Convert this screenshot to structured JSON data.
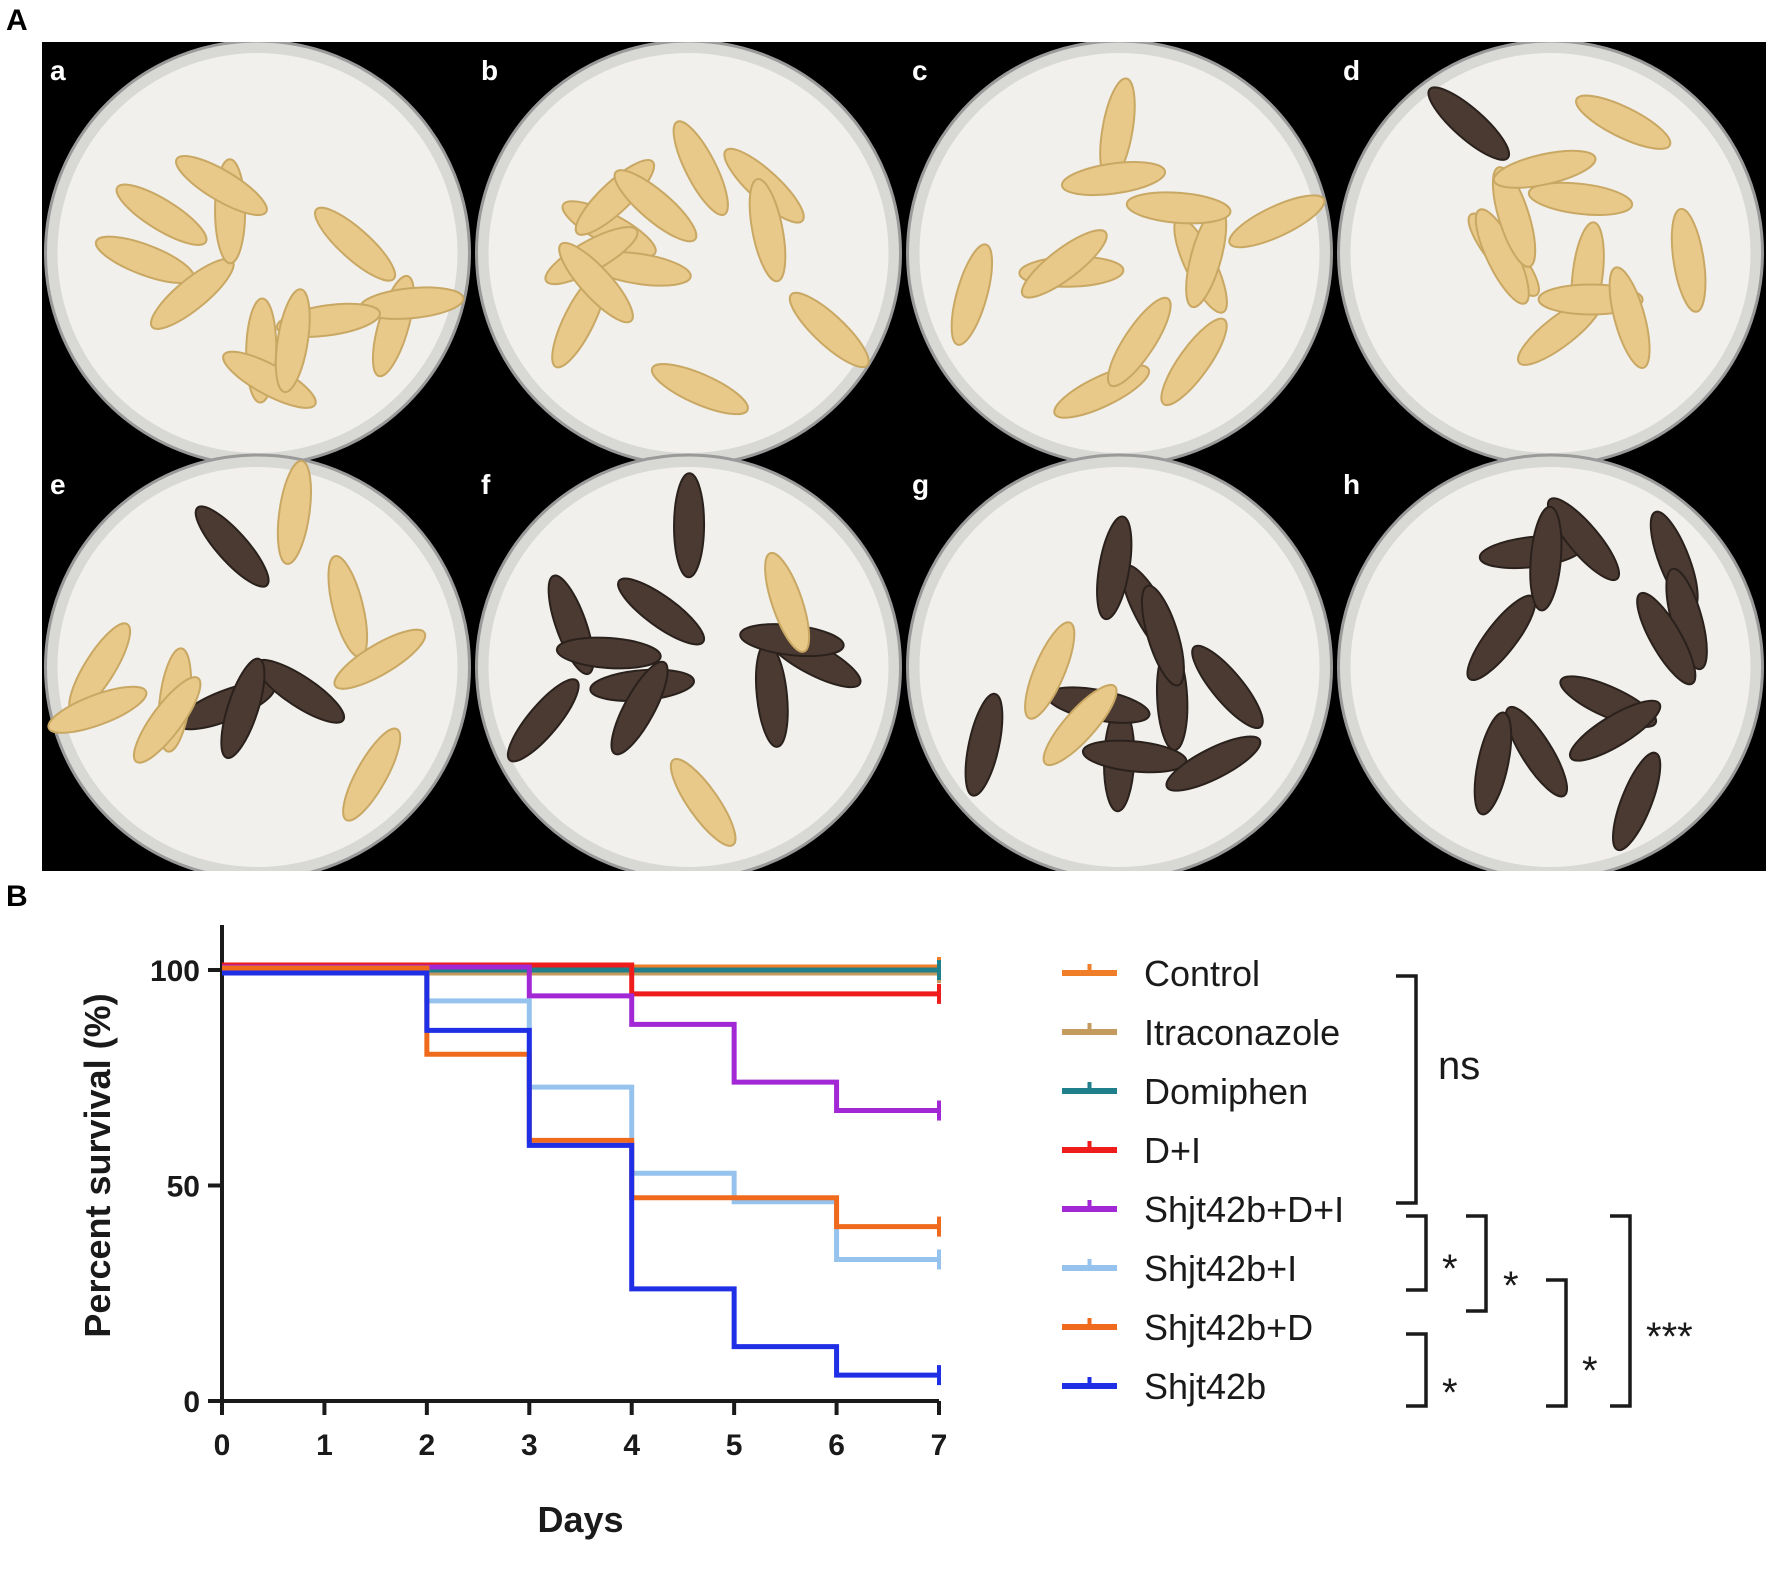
{
  "panels": {
    "a_label": "A",
    "b_label": "B"
  },
  "plates": {
    "labels": [
      "a",
      "b",
      "c",
      "d",
      "e",
      "f",
      "g",
      "h"
    ],
    "larva_color_healthy": "#e8c98a",
    "larva_color_melanized": "#4a3a32"
  },
  "chart_data": {
    "type": "line",
    "step": true,
    "title": "",
    "xlabel": "Days",
    "ylabel": "Percent survival (%)",
    "xlim": [
      0,
      7
    ],
    "ylim": [
      0,
      100
    ],
    "x_ticks": [
      0,
      1,
      2,
      3,
      4,
      5,
      6,
      7
    ],
    "y_ticks": [
      0,
      50,
      100
    ],
    "grid": false,
    "legend_position": "right",
    "series": [
      {
        "name": "Control",
        "color": "#f07d28",
        "x": [
          0,
          7
        ],
        "y": [
          100,
          100
        ]
      },
      {
        "name": "Itraconazole",
        "color": "#c49a5e",
        "x": [
          0,
          7
        ],
        "y": [
          100,
          100
        ]
      },
      {
        "name": "Domiphen",
        "color": "#1f7f8a",
        "x": [
          0,
          7
        ],
        "y": [
          100,
          100
        ]
      },
      {
        "name": "D+I",
        "color": "#ef1c1c",
        "x": [
          0,
          4,
          7
        ],
        "y": [
          100,
          93.3,
          93.3
        ]
      },
      {
        "name": "Shjt42b+D+I",
        "color": "#a128d4",
        "x": [
          0,
          3,
          4,
          5,
          6,
          7
        ],
        "y": [
          100,
          93.3,
          86.7,
          73.3,
          66.7,
          66.7
        ]
      },
      {
        "name": "Shjt42b+I",
        "color": "#96c3ed",
        "x": [
          0,
          2,
          3,
          4,
          5,
          6,
          7
        ],
        "y": [
          100,
          93.3,
          73.3,
          53.3,
          46.7,
          33.3,
          33.3
        ]
      },
      {
        "name": "Shjt42b+D",
        "color": "#f06a1e",
        "x": [
          0,
          2,
          3,
          4,
          5,
          6,
          7
        ],
        "y": [
          100,
          80,
          60,
          46.7,
          46.7,
          40,
          40
        ]
      },
      {
        "name": "Shjt42b",
        "color": "#1f2fe6",
        "x": [
          0,
          2,
          3,
          4,
          5,
          6,
          7
        ],
        "y": [
          100,
          86.7,
          60,
          26.7,
          13.3,
          6.7,
          6.7
        ]
      }
    ],
    "significance": {
      "group_ns_label": "ns",
      "pair_1_label": "*",
      "pair_2_label": "*",
      "pair_3_label": "*",
      "pair_4_label": "*",
      "pair_5_label": "***"
    }
  }
}
